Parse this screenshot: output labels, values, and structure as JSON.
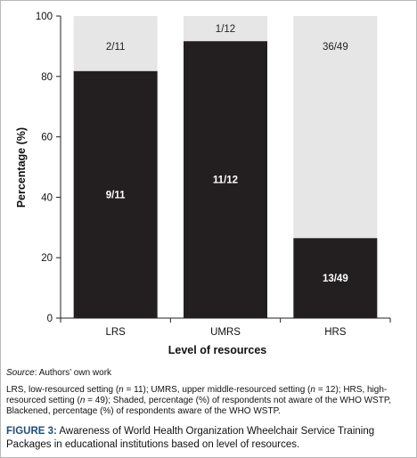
{
  "chart_data": {
    "type": "bar",
    "stacked": true,
    "categories": [
      "LRS",
      "UMRS",
      "HRS"
    ],
    "series": [
      {
        "key": "aware",
        "values": [
          81.8,
          91.7,
          26.5
        ],
        "labels": [
          "9/11",
          "11/12",
          "13/49"
        ],
        "color": "#231f20"
      },
      {
        "key": "not_aware",
        "values": [
          18.2,
          8.3,
          73.5
        ],
        "labels": [
          "2/11",
          "1/12",
          "36/49"
        ],
        "color": "#e6e6e6"
      }
    ],
    "ylim": [
      0,
      100
    ],
    "yticks": [
      0,
      20,
      40,
      60,
      80,
      100
    ],
    "xlabel": "Level of resources",
    "ylabel": "Percentage (%)",
    "grid": false
  },
  "source": {
    "label": "Source",
    "text": ": Authors’ own work"
  },
  "note": {
    "p1": "LRS, low-resourced setting (",
    "n1": "n",
    "p2": " = 11); UMRS, upper middle-resourced setting (",
    "n2": "n",
    "p3": " = 12); HRS, high-resourced setting (",
    "n3": "n",
    "p4": " = 49); Shaded, percentage (%) of respondents not aware of the WHO WSTP, Blackened, percentage (%) of respondents aware of the WHO WSTP."
  },
  "caption": {
    "label": "FIGURE 3:",
    "text": " Awareness of World Health Organization Wheelchair Service Training Packages in educational institutions based on level of resources."
  }
}
